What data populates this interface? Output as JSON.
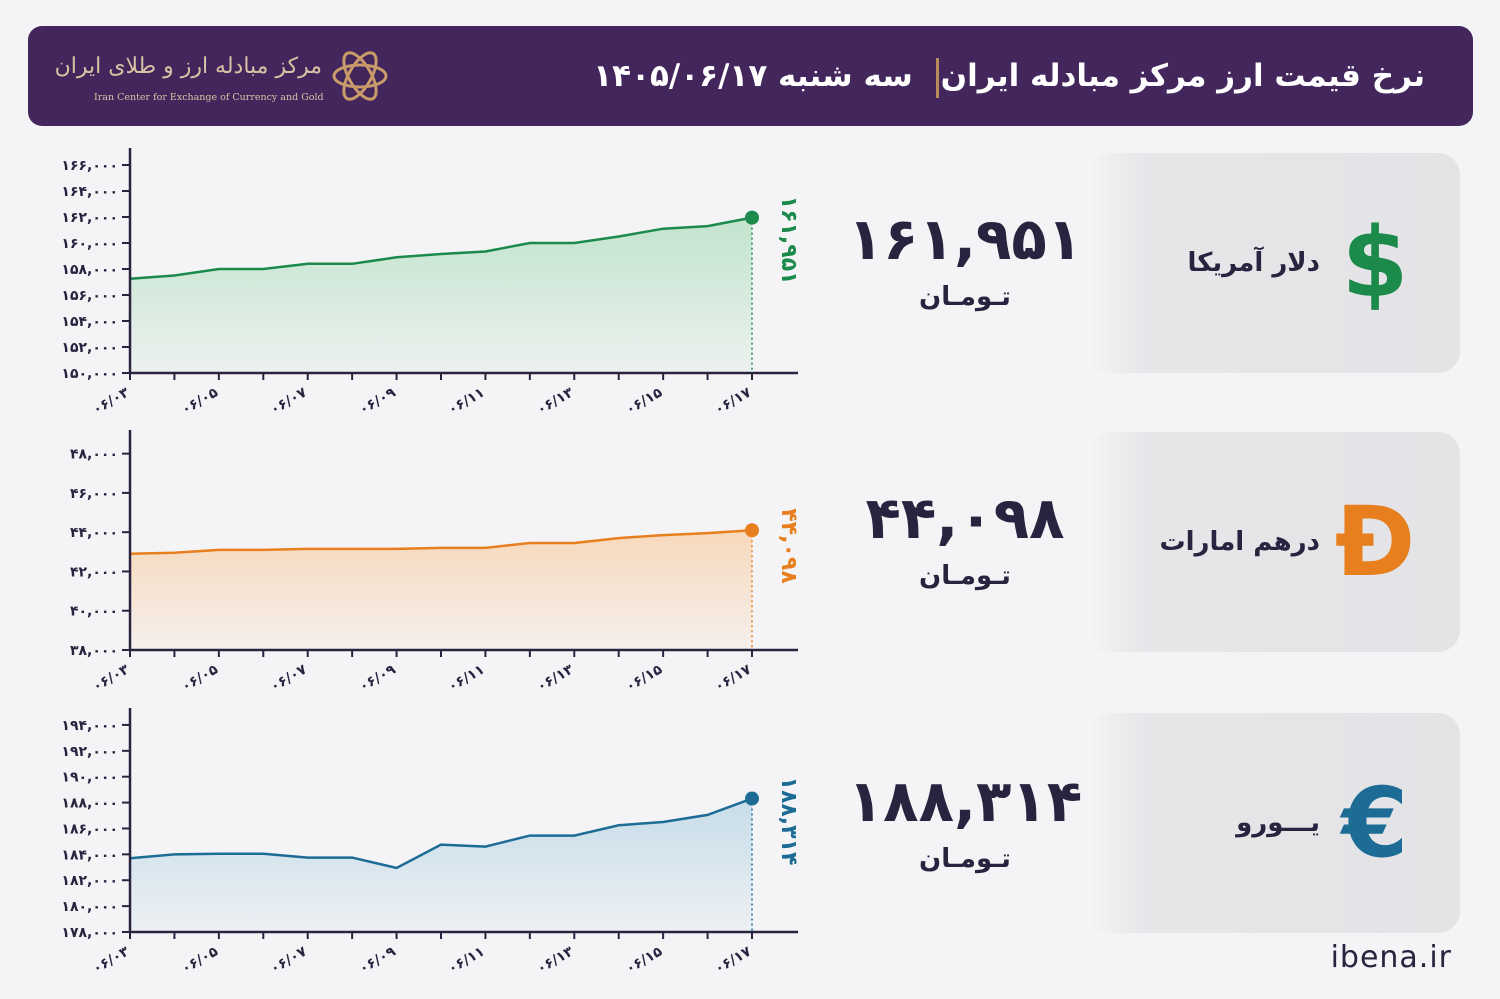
{
  "header": {
    "title": "نرخ قیمت ارز مرکز مبادله ایران",
    "date": "سه شنبه ۱۴۰۵/۰۶/۱۷",
    "logo_fa": "مرکز مبادله ارز و طلای ایران",
    "logo_en": "Iran Center for Exchange of Currency and Gold"
  },
  "currencies": [
    {
      "name": "دلار آمریکا",
      "value": "۱۶۱,۹۵۱",
      "unit": "تـومـان",
      "icon": "dollar-icon",
      "symbol": "$",
      "color": "#1b8a4a"
    },
    {
      "name": "درهم امارات",
      "value": "۴۴,۰۹۸",
      "unit": "تـومـان",
      "icon": "dirham-icon",
      "symbol": "Đ",
      "color": "#e87f1e"
    },
    {
      "name": "یـــورو",
      "value": "۱۸۸,۳۱۴",
      "unit": "تـومـان",
      "icon": "euro-icon",
      "symbol": "€",
      "color": "#1c6c95"
    }
  ],
  "chart_data": [
    {
      "type": "area",
      "series_name": "دلار آمریکا",
      "color": "#1b8a4a",
      "fill_top": "#bfe3cb",
      "x": [
        "۰۶/۰۳",
        "۰۶/۰۴",
        "۰۶/۰۵",
        "۰۶/۰۶",
        "۰۶/۰۷",
        "۰۶/۰۸",
        "۰۶/۰۹",
        "۰۶/۱۰",
        "۰۶/۱۱",
        "۰۶/۱۲",
        "۰۶/۱۳",
        "۰۶/۱۴",
        "۰۶/۱۵",
        "۰۶/۱۶",
        "۰۶/۱۷"
      ],
      "values": [
        157250,
        157500,
        158000,
        158000,
        158400,
        158400,
        158900,
        159150,
        159350,
        160000,
        160000,
        160500,
        161100,
        161300,
        161951
      ],
      "ylim": [
        150000,
        167000
      ],
      "yticks": [
        150000,
        152000,
        154000,
        156000,
        158000,
        160000,
        162000,
        164000,
        166000
      ],
      "ytick_labels": [
        "۱۵۰,۰۰۰",
        "۱۵۲,۰۰۰",
        "۱۵۴,۰۰۰",
        "۱۵۶,۰۰۰",
        "۱۵۸,۰۰۰",
        "۱۶۰,۰۰۰",
        "۱۶۲,۰۰۰",
        "۱۶۴,۰۰۰",
        "۱۶۶,۰۰۰"
      ],
      "xtick_labels": [
        "۰۶/۰۳",
        "۰۶/۰۵",
        "۰۶/۰۷",
        "۰۶/۰۹",
        "۰۶/۱۱",
        "۰۶/۱۳",
        "۰۶/۱۵",
        "۰۶/۱۷"
      ],
      "last_label": "۱۶۱,۹۵۱"
    },
    {
      "type": "area",
      "series_name": "درهم امارات",
      "color": "#e87f1e",
      "fill_top": "#f8d7b8",
      "x": [
        "۰۶/۰۳",
        "۰۶/۰۴",
        "۰۶/۰۵",
        "۰۶/۰۶",
        "۰۶/۰۷",
        "۰۶/۰۸",
        "۰۶/۰۹",
        "۰۶/۱۰",
        "۰۶/۱۱",
        "۰۶/۱۲",
        "۰۶/۱۳",
        "۰۶/۱۴",
        "۰۶/۱۵",
        "۰۶/۱۶",
        "۰۶/۱۷"
      ],
      "values": [
        42900,
        42950,
        43100,
        43100,
        43150,
        43150,
        43150,
        43200,
        43200,
        43450,
        43450,
        43700,
        43850,
        43950,
        44098
      ],
      "ylim": [
        38000,
        49000
      ],
      "yticks": [
        38000,
        40000,
        42000,
        44000,
        46000,
        48000
      ],
      "ytick_labels": [
        "۳۸,۰۰۰",
        "۴۰,۰۰۰",
        "۴۲,۰۰۰",
        "۴۴,۰۰۰",
        "۴۶,۰۰۰",
        "۴۸,۰۰۰"
      ],
      "xtick_labels": [
        "۰۶/۰۳",
        "۰۶/۰۵",
        "۰۶/۰۷",
        "۰۶/۰۹",
        "۰۶/۱۱",
        "۰۶/۱۳",
        "۰۶/۱۵",
        "۰۶/۱۷"
      ],
      "last_label": "۴۴,۰۹۸"
    },
    {
      "type": "area",
      "series_name": "یورو",
      "color": "#1c6c95",
      "fill_top": "#c4dbe8",
      "x": [
        "۰۶/۰۳",
        "۰۶/۰۴",
        "۰۶/۰۵",
        "۰۶/۰۶",
        "۰۶/۰۷",
        "۰۶/۰۸",
        "۰۶/۰۹",
        "۰۶/۱۰",
        "۰۶/۱۱",
        "۰۶/۱۲",
        "۰۶/۱۳",
        "۰۶/۱۴",
        "۰۶/۱۵",
        "۰۶/۱۶",
        "۰۶/۱۷"
      ],
      "values": [
        183700,
        184000,
        184050,
        184050,
        183750,
        183750,
        182950,
        184750,
        184600,
        185450,
        185450,
        186250,
        186500,
        187050,
        188314
      ],
      "ylim": [
        178000,
        195000
      ],
      "yticks": [
        178000,
        180000,
        182000,
        184000,
        186000,
        188000,
        190000,
        192000,
        194000
      ],
      "ytick_labels": [
        "۱۷۸,۰۰۰",
        "۱۸۰,۰۰۰",
        "۱۸۲,۰۰۰",
        "۱۸۴,۰۰۰",
        "۱۸۶,۰۰۰",
        "۱۸۸,۰۰۰",
        "۱۹۰,۰۰۰",
        "۱۹۲,۰۰۰",
        "۱۹۴,۰۰۰"
      ],
      "xtick_labels": [
        "۰۶/۰۳",
        "۰۶/۰۵",
        "۰۶/۰۷",
        "۰۶/۰۹",
        "۰۶/۱۱",
        "۰۶/۱۳",
        "۰۶/۱۵",
        "۰۶/۱۷"
      ],
      "last_label": "۱۸۸,۳۱۴"
    }
  ],
  "footer": {
    "site": "ibena.ir"
  }
}
